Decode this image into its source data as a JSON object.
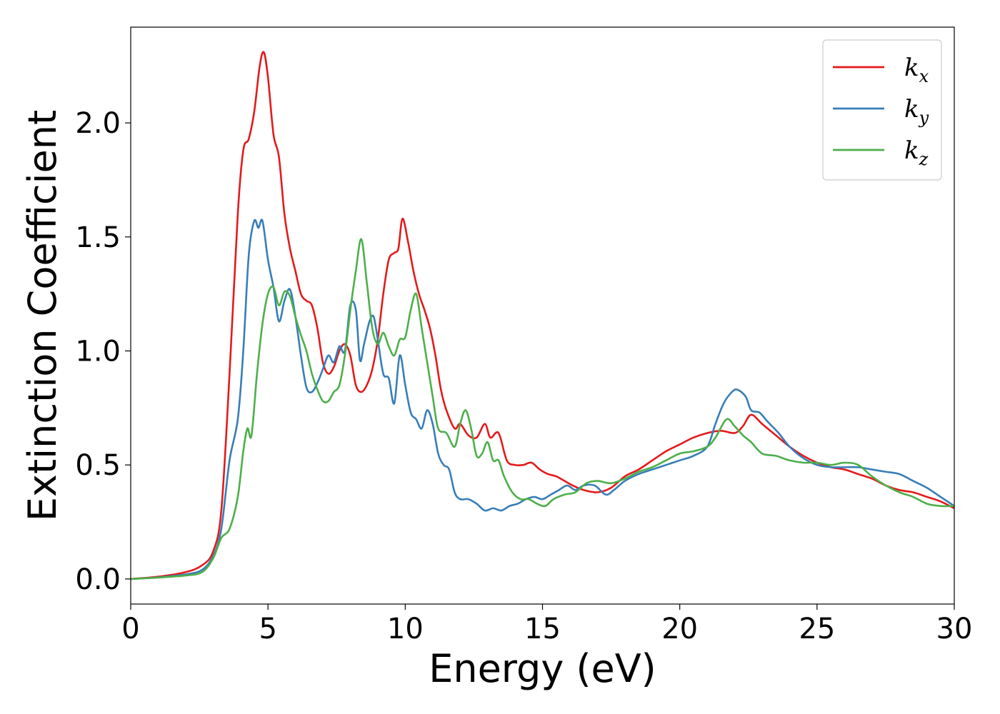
{
  "chart_data": {
    "type": "line",
    "title": "",
    "xlabel": "Energy (eV)",
    "ylabel": "Extinction Coefficient",
    "xlim": [
      0,
      30
    ],
    "ylim": [
      -0.11,
      2.42
    ],
    "xticks": [
      0,
      5,
      10,
      15,
      20,
      25,
      30
    ],
    "xtick_labels": [
      "0",
      "5",
      "10",
      "15",
      "20",
      "25",
      "30"
    ],
    "yticks": [
      0.0,
      0.5,
      1.0,
      1.5,
      2.0
    ],
    "ytick_labels": [
      "0.0",
      "0.5",
      "1.0",
      "1.5",
      "2.0"
    ],
    "grid": false,
    "legend": {
      "position": "top-right",
      "entries": [
        {
          "base": "k",
          "sub": "x",
          "color": "#e41a1c"
        },
        {
          "base": "k",
          "sub": "y",
          "color": "#377eb8"
        },
        {
          "base": "k",
          "sub": "z",
          "color": "#4daf4a"
        }
      ]
    },
    "series": [
      {
        "name": "k_x",
        "color": "#e41a1c",
        "points": [
          [
            0,
            0
          ],
          [
            1,
            0.01
          ],
          [
            2,
            0.03
          ],
          [
            2.6,
            0.06
          ],
          [
            3,
            0.12
          ],
          [
            3.3,
            0.3
          ],
          [
            3.6,
            0.9
          ],
          [
            3.9,
            1.6
          ],
          [
            4.1,
            1.88
          ],
          [
            4.3,
            1.93
          ],
          [
            4.5,
            2.05
          ],
          [
            4.7,
            2.25
          ],
          [
            4.85,
            2.31
          ],
          [
            5.0,
            2.2
          ],
          [
            5.2,
            1.95
          ],
          [
            5.4,
            1.85
          ],
          [
            5.6,
            1.6
          ],
          [
            5.8,
            1.45
          ],
          [
            6.0,
            1.35
          ],
          [
            6.2,
            1.25
          ],
          [
            6.4,
            1.22
          ],
          [
            6.6,
            1.2
          ],
          [
            6.8,
            1.1
          ],
          [
            7.0,
            0.95
          ],
          [
            7.2,
            0.9
          ],
          [
            7.4,
            0.93
          ],
          [
            7.6,
            1.0
          ],
          [
            7.8,
            1.03
          ],
          [
            8.0,
            0.98
          ],
          [
            8.2,
            0.85
          ],
          [
            8.4,
            0.82
          ],
          [
            8.6,
            0.85
          ],
          [
            8.8,
            0.92
          ],
          [
            9.0,
            1.05
          ],
          [
            9.2,
            1.25
          ],
          [
            9.4,
            1.4
          ],
          [
            9.6,
            1.43
          ],
          [
            9.75,
            1.45
          ],
          [
            9.9,
            1.58
          ],
          [
            10.1,
            1.48
          ],
          [
            10.3,
            1.35
          ],
          [
            10.5,
            1.25
          ],
          [
            10.7,
            1.18
          ],
          [
            10.9,
            1.1
          ],
          [
            11.1,
            0.98
          ],
          [
            11.3,
            0.83
          ],
          [
            11.5,
            0.74
          ],
          [
            11.8,
            0.66
          ],
          [
            12.0,
            0.68
          ],
          [
            12.3,
            0.63
          ],
          [
            12.6,
            0.62
          ],
          [
            12.9,
            0.68
          ],
          [
            13.1,
            0.62
          ],
          [
            13.4,
            0.64
          ],
          [
            13.7,
            0.52
          ],
          [
            14.0,
            0.5
          ],
          [
            14.3,
            0.5
          ],
          [
            14.6,
            0.51
          ],
          [
            14.9,
            0.48
          ],
          [
            15.2,
            0.46
          ],
          [
            15.5,
            0.45
          ],
          [
            15.8,
            0.43
          ],
          [
            16.1,
            0.41
          ],
          [
            16.5,
            0.39
          ],
          [
            17.0,
            0.38
          ],
          [
            17.5,
            0.4
          ],
          [
            18.0,
            0.45
          ],
          [
            18.5,
            0.48
          ],
          [
            19.0,
            0.52
          ],
          [
            19.5,
            0.56
          ],
          [
            20.0,
            0.59
          ],
          [
            20.5,
            0.62
          ],
          [
            21.0,
            0.64
          ],
          [
            21.5,
            0.65
          ],
          [
            22.0,
            0.64
          ],
          [
            22.3,
            0.67
          ],
          [
            22.6,
            0.72
          ],
          [
            23.0,
            0.68
          ],
          [
            23.5,
            0.63
          ],
          [
            24.0,
            0.58
          ],
          [
            24.5,
            0.54
          ],
          [
            25.0,
            0.51
          ],
          [
            25.5,
            0.49
          ],
          [
            26.0,
            0.48
          ],
          [
            26.5,
            0.46
          ],
          [
            27.0,
            0.44
          ],
          [
            27.5,
            0.41
          ],
          [
            28.0,
            0.39
          ],
          [
            28.5,
            0.38
          ],
          [
            29.0,
            0.36
          ],
          [
            29.5,
            0.34
          ],
          [
            30.0,
            0.31
          ]
        ]
      },
      {
        "name": "k_y",
        "color": "#377eb8",
        "points": [
          [
            0,
            0
          ],
          [
            1,
            0.007
          ],
          [
            2,
            0.02
          ],
          [
            2.6,
            0.04
          ],
          [
            3,
            0.1
          ],
          [
            3.3,
            0.22
          ],
          [
            3.6,
            0.52
          ],
          [
            3.9,
            0.7
          ],
          [
            4.1,
            1.0
          ],
          [
            4.3,
            1.42
          ],
          [
            4.5,
            1.57
          ],
          [
            4.65,
            1.54
          ],
          [
            4.8,
            1.57
          ],
          [
            5.0,
            1.4
          ],
          [
            5.2,
            1.28
          ],
          [
            5.4,
            1.13
          ],
          [
            5.6,
            1.22
          ],
          [
            5.8,
            1.27
          ],
          [
            6.0,
            1.15
          ],
          [
            6.2,
            0.98
          ],
          [
            6.4,
            0.84
          ],
          [
            6.6,
            0.82
          ],
          [
            6.8,
            0.86
          ],
          [
            7.0,
            0.92
          ],
          [
            7.2,
            0.98
          ],
          [
            7.4,
            0.95
          ],
          [
            7.6,
            1.02
          ],
          [
            7.8,
            1.0
          ],
          [
            8.0,
            1.2
          ],
          [
            8.2,
            1.18
          ],
          [
            8.35,
            0.96
          ],
          [
            8.5,
            1.03
          ],
          [
            8.7,
            1.13
          ],
          [
            8.85,
            1.15
          ],
          [
            9.0,
            1.05
          ],
          [
            9.2,
            0.9
          ],
          [
            9.4,
            0.88
          ],
          [
            9.6,
            0.77
          ],
          [
            9.8,
            0.98
          ],
          [
            10.0,
            0.85
          ],
          [
            10.2,
            0.73
          ],
          [
            10.4,
            0.7
          ],
          [
            10.6,
            0.66
          ],
          [
            10.8,
            0.74
          ],
          [
            11.0,
            0.68
          ],
          [
            11.2,
            0.55
          ],
          [
            11.4,
            0.5
          ],
          [
            11.6,
            0.48
          ],
          [
            11.8,
            0.38
          ],
          [
            12.0,
            0.35
          ],
          [
            12.3,
            0.35
          ],
          [
            12.6,
            0.33
          ],
          [
            12.9,
            0.3
          ],
          [
            13.2,
            0.31
          ],
          [
            13.5,
            0.3
          ],
          [
            13.8,
            0.32
          ],
          [
            14.1,
            0.33
          ],
          [
            14.4,
            0.35
          ],
          [
            14.7,
            0.36
          ],
          [
            15.0,
            0.35
          ],
          [
            15.3,
            0.37
          ],
          [
            15.6,
            0.39
          ],
          [
            15.9,
            0.41
          ],
          [
            16.2,
            0.39
          ],
          [
            16.5,
            0.41
          ],
          [
            16.9,
            0.41
          ],
          [
            17.3,
            0.37
          ],
          [
            17.6,
            0.39
          ],
          [
            18.0,
            0.43
          ],
          [
            18.5,
            0.46
          ],
          [
            19.0,
            0.48
          ],
          [
            19.5,
            0.5
          ],
          [
            20.0,
            0.52
          ],
          [
            20.5,
            0.54
          ],
          [
            21.0,
            0.58
          ],
          [
            21.3,
            0.68
          ],
          [
            21.6,
            0.77
          ],
          [
            21.9,
            0.82
          ],
          [
            22.1,
            0.83
          ],
          [
            22.4,
            0.8
          ],
          [
            22.6,
            0.74
          ],
          [
            22.9,
            0.73
          ],
          [
            23.2,
            0.69
          ],
          [
            23.6,
            0.64
          ],
          [
            24.0,
            0.58
          ],
          [
            24.5,
            0.53
          ],
          [
            25.0,
            0.5
          ],
          [
            25.5,
            0.49
          ],
          [
            26.0,
            0.49
          ],
          [
            26.5,
            0.49
          ],
          [
            27.0,
            0.48
          ],
          [
            27.5,
            0.47
          ],
          [
            28.0,
            0.46
          ],
          [
            28.5,
            0.43
          ],
          [
            29.0,
            0.4
          ],
          [
            29.5,
            0.36
          ],
          [
            30.0,
            0.32
          ]
        ]
      },
      {
        "name": "k_z",
        "color": "#4daf4a",
        "points": [
          [
            0,
            0
          ],
          [
            1,
            0.006
          ],
          [
            2,
            0.015
          ],
          [
            2.6,
            0.03
          ],
          [
            3,
            0.09
          ],
          [
            3.3,
            0.18
          ],
          [
            3.6,
            0.22
          ],
          [
            3.9,
            0.36
          ],
          [
            4.1,
            0.56
          ],
          [
            4.25,
            0.66
          ],
          [
            4.4,
            0.63
          ],
          [
            4.6,
            0.9
          ],
          [
            4.8,
            1.12
          ],
          [
            5.0,
            1.25
          ],
          [
            5.2,
            1.28
          ],
          [
            5.4,
            1.2
          ],
          [
            5.6,
            1.26
          ],
          [
            5.8,
            1.24
          ],
          [
            6.0,
            1.15
          ],
          [
            6.2,
            1.07
          ],
          [
            6.4,
            1.0
          ],
          [
            6.6,
            0.9
          ],
          [
            6.8,
            0.83
          ],
          [
            7.0,
            0.78
          ],
          [
            7.2,
            0.78
          ],
          [
            7.4,
            0.82
          ],
          [
            7.6,
            0.85
          ],
          [
            7.8,
            0.98
          ],
          [
            8.0,
            1.18
          ],
          [
            8.2,
            1.35
          ],
          [
            8.4,
            1.49
          ],
          [
            8.6,
            1.3
          ],
          [
            8.8,
            1.1
          ],
          [
            9.0,
            1.03
          ],
          [
            9.2,
            1.08
          ],
          [
            9.4,
            1.02
          ],
          [
            9.6,
            0.98
          ],
          [
            9.8,
            1.05
          ],
          [
            10.0,
            1.06
          ],
          [
            10.2,
            1.18
          ],
          [
            10.4,
            1.25
          ],
          [
            10.6,
            1.1
          ],
          [
            10.8,
            0.95
          ],
          [
            11.0,
            0.8
          ],
          [
            11.2,
            0.66
          ],
          [
            11.5,
            0.64
          ],
          [
            11.8,
            0.58
          ],
          [
            12.0,
            0.68
          ],
          [
            12.2,
            0.74
          ],
          [
            12.4,
            0.66
          ],
          [
            12.6,
            0.54
          ],
          [
            12.8,
            0.55
          ],
          [
            13.0,
            0.6
          ],
          [
            13.2,
            0.52
          ],
          [
            13.4,
            0.52
          ],
          [
            13.6,
            0.45
          ],
          [
            13.9,
            0.38
          ],
          [
            14.2,
            0.35
          ],
          [
            14.5,
            0.35
          ],
          [
            14.8,
            0.33
          ],
          [
            15.1,
            0.32
          ],
          [
            15.4,
            0.35
          ],
          [
            15.8,
            0.37
          ],
          [
            16.2,
            0.38
          ],
          [
            16.6,
            0.42
          ],
          [
            17.0,
            0.43
          ],
          [
            17.5,
            0.42
          ],
          [
            18.0,
            0.44
          ],
          [
            18.5,
            0.47
          ],
          [
            19.0,
            0.49
          ],
          [
            19.5,
            0.52
          ],
          [
            20.0,
            0.55
          ],
          [
            20.5,
            0.56
          ],
          [
            21.0,
            0.58
          ],
          [
            21.3,
            0.62
          ],
          [
            21.7,
            0.7
          ],
          [
            22.0,
            0.67
          ],
          [
            22.3,
            0.63
          ],
          [
            22.6,
            0.6
          ],
          [
            23.0,
            0.55
          ],
          [
            23.5,
            0.54
          ],
          [
            24.0,
            0.52
          ],
          [
            24.5,
            0.51
          ],
          [
            25.0,
            0.51
          ],
          [
            25.5,
            0.5
          ],
          [
            26.0,
            0.51
          ],
          [
            26.5,
            0.5
          ],
          [
            27.0,
            0.45
          ],
          [
            27.5,
            0.41
          ],
          [
            28.0,
            0.38
          ],
          [
            28.5,
            0.36
          ],
          [
            29.0,
            0.33
          ],
          [
            29.5,
            0.32
          ],
          [
            30.0,
            0.32
          ]
        ]
      }
    ]
  }
}
